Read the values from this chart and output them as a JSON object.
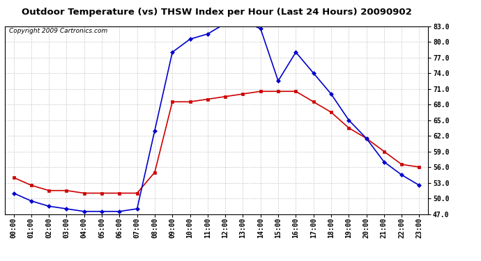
{
  "title": "Outdoor Temperature (vs) THSW Index per Hour (Last 24 Hours) 20090902",
  "copyright": "Copyright 2009 Cartronics.com",
  "hours": [
    "00:00",
    "01:00",
    "02:00",
    "03:00",
    "04:00",
    "05:00",
    "06:00",
    "07:00",
    "08:00",
    "09:00",
    "10:00",
    "11:00",
    "12:00",
    "13:00",
    "14:00",
    "15:00",
    "16:00",
    "17:00",
    "18:00",
    "19:00",
    "20:00",
    "21:00",
    "22:00",
    "23:00"
  ],
  "temp_red": [
    54.0,
    52.5,
    51.5,
    51.5,
    51.0,
    51.0,
    51.0,
    51.0,
    55.0,
    68.5,
    68.5,
    69.0,
    69.5,
    70.0,
    70.5,
    70.5,
    70.5,
    68.5,
    66.5,
    63.5,
    61.5,
    59.0,
    56.5,
    56.0
  ],
  "thsw_blue": [
    51.0,
    49.5,
    48.5,
    48.0,
    47.5,
    47.5,
    47.5,
    48.0,
    63.0,
    78.0,
    80.5,
    81.5,
    83.5,
    84.0,
    82.5,
    72.5,
    78.0,
    74.0,
    70.0,
    65.0,
    61.5,
    57.0,
    54.5,
    52.5
  ],
  "ylim": [
    47.0,
    83.0
  ],
  "yticks": [
    47.0,
    50.0,
    53.0,
    56.0,
    59.0,
    62.0,
    65.0,
    68.0,
    71.0,
    74.0,
    77.0,
    80.0,
    83.0
  ],
  "red_color": "#cc0000",
  "blue_color": "#0000cc",
  "background_color": "#ffffff",
  "grid_color": "#bbbbbb",
  "title_fontsize": 9.5,
  "copyright_fontsize": 6.5,
  "tick_fontsize": 7,
  "marker_size": 3
}
